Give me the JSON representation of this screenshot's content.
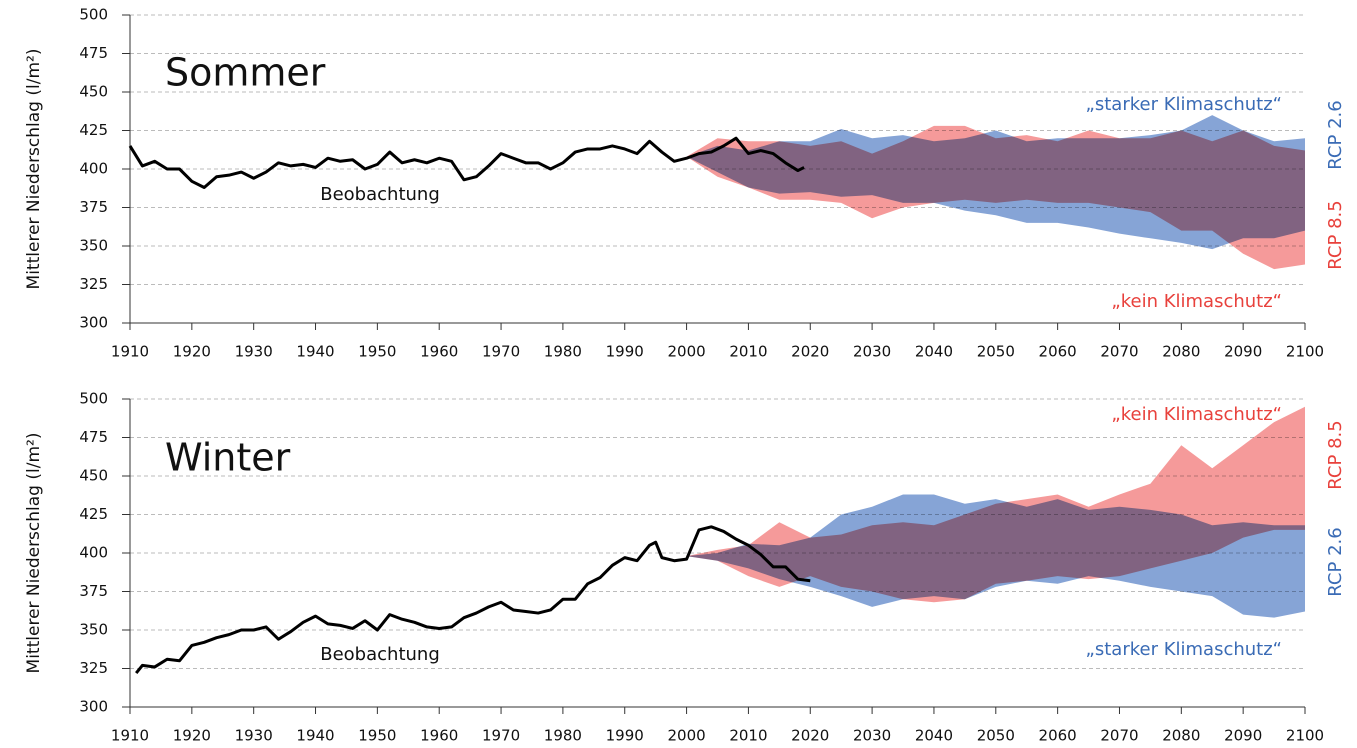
{
  "chart_data": [
    {
      "type": "line",
      "title": "Sommer",
      "ylabel": "Mittlerer Niederschlag (l/m²)",
      "xlim": [
        1910,
        2100
      ],
      "ylim": [
        300,
        500
      ],
      "xticks": [
        1910,
        1920,
        1930,
        1940,
        1950,
        1960,
        1970,
        1980,
        1990,
        2000,
        2010,
        2020,
        2030,
        2040,
        2050,
        2060,
        2070,
        2080,
        2090,
        2100
      ],
      "yticks": [
        300,
        325,
        350,
        375,
        400,
        425,
        450,
        475,
        500
      ],
      "grid": true,
      "series": [
        {
          "name": "RCP 2.6",
          "kind": "band",
          "color": "#86a4d6",
          "text_color": "#3a6bb5",
          "x": [
            2000,
            2005,
            2010,
            2015,
            2020,
            2025,
            2030,
            2035,
            2040,
            2045,
            2050,
            2055,
            2060,
            2065,
            2070,
            2075,
            2080,
            2085,
            2090,
            2095,
            2100
          ],
          "upper": [
            408,
            415,
            412,
            418,
            418,
            426,
            420,
            422,
            418,
            420,
            425,
            418,
            420,
            420,
            420,
            422,
            425,
            435,
            425,
            418,
            420
          ],
          "lower": [
            408,
            398,
            388,
            384,
            385,
            382,
            383,
            378,
            378,
            373,
            370,
            365,
            365,
            362,
            358,
            355,
            352,
            348,
            355,
            355,
            360
          ]
        },
        {
          "name": "RCP 8.5",
          "kind": "band",
          "color": "#f59a9a",
          "text_color": "#e8413c",
          "x": [
            2000,
            2005,
            2010,
            2015,
            2020,
            2025,
            2030,
            2035,
            2040,
            2045,
            2050,
            2055,
            2060,
            2065,
            2070,
            2075,
            2080,
            2085,
            2090,
            2095,
            2100
          ],
          "upper": [
            408,
            420,
            418,
            418,
            415,
            418,
            410,
            418,
            428,
            428,
            420,
            422,
            418,
            425,
            420,
            420,
            425,
            418,
            425,
            415,
            412
          ],
          "lower": [
            408,
            395,
            388,
            380,
            380,
            378,
            368,
            375,
            378,
            380,
            378,
            380,
            378,
            378,
            375,
            372,
            360,
            360,
            345,
            335,
            338
          ]
        },
        {
          "name": "Beobachtung",
          "kind": "line",
          "color": "#000000",
          "x": [
            1910,
            1912,
            1914,
            1916,
            1918,
            1920,
            1922,
            1924,
            1926,
            1928,
            1930,
            1932,
            1934,
            1936,
            1938,
            1940,
            1942,
            1944,
            1946,
            1948,
            1950,
            1952,
            1954,
            1956,
            1958,
            1960,
            1962,
            1964,
            1966,
            1968,
            1970,
            1972,
            1974,
            1976,
            1978,
            1980,
            1982,
            1984,
            1986,
            1988,
            1990,
            1992,
            1994,
            1996,
            1998,
            2000,
            2002,
            2004,
            2006,
            2008,
            2010,
            2012,
            2014,
            2016,
            2018,
            2019
          ],
          "values": [
            415,
            402,
            405,
            400,
            400,
            392,
            388,
            395,
            396,
            398,
            394,
            398,
            404,
            402,
            403,
            401,
            407,
            405,
            406,
            400,
            403,
            411,
            404,
            406,
            404,
            407,
            405,
            393,
            395,
            402,
            410,
            407,
            404,
            404,
            400,
            404,
            411,
            413,
            413,
            415,
            413,
            410,
            418,
            411,
            405,
            407,
            410,
            411,
            415,
            420,
            410,
            412,
            410,
            404,
            399,
            401
          ]
        }
      ],
      "annotations": [
        {
          "text": "„starker Klimaschutz“",
          "color": "#3a6bb5"
        },
        {
          "text": "„kein Klimaschutz“",
          "color": "#e8413c"
        }
      ]
    },
    {
      "type": "line",
      "title": "Winter",
      "ylabel": "Mittlerer Niederschlag (l/m²)",
      "xlim": [
        1910,
        2100
      ],
      "ylim": [
        300,
        500
      ],
      "xticks": [
        1910,
        1920,
        1930,
        1940,
        1950,
        1960,
        1970,
        1980,
        1990,
        2000,
        2010,
        2020,
        2030,
        2040,
        2050,
        2060,
        2070,
        2080,
        2090,
        2100
      ],
      "yticks": [
        300,
        325,
        350,
        375,
        400,
        425,
        450,
        475,
        500
      ],
      "grid": true,
      "series": [
        {
          "name": "RCP 2.6",
          "kind": "band",
          "color": "#86a4d6",
          "text_color": "#3a6bb5",
          "x": [
            2000,
            2005,
            2010,
            2015,
            2020,
            2025,
            2030,
            2035,
            2040,
            2045,
            2050,
            2055,
            2060,
            2065,
            2070,
            2075,
            2080,
            2085,
            2090,
            2095,
            2100
          ],
          "upper": [
            398,
            400,
            406,
            405,
            410,
            425,
            430,
            438,
            438,
            432,
            435,
            430,
            435,
            428,
            430,
            428,
            425,
            418,
            420,
            418,
            418
          ],
          "lower": [
            398,
            395,
            390,
            383,
            378,
            372,
            365,
            370,
            372,
            370,
            378,
            382,
            380,
            385,
            382,
            378,
            375,
            372,
            360,
            358,
            362
          ]
        },
        {
          "name": "RCP 8.5",
          "kind": "band",
          "color": "#f59a9a",
          "text_color": "#e8413c",
          "x": [
            2000,
            2005,
            2010,
            2015,
            2020,
            2025,
            2030,
            2035,
            2040,
            2045,
            2050,
            2055,
            2060,
            2065,
            2070,
            2075,
            2080,
            2085,
            2090,
            2095,
            2100
          ],
          "upper": [
            398,
            402,
            405,
            420,
            410,
            412,
            418,
            420,
            418,
            425,
            432,
            435,
            438,
            430,
            438,
            445,
            470,
            455,
            470,
            485,
            495
          ],
          "lower": [
            398,
            395,
            385,
            378,
            385,
            378,
            375,
            370,
            368,
            370,
            380,
            382,
            385,
            383,
            385,
            390,
            395,
            400,
            410,
            415,
            415
          ]
        },
        {
          "name": "Beobachtung",
          "kind": "line",
          "color": "#000000",
          "x": [
            1911,
            1912,
            1914,
            1916,
            1918,
            1920,
            1922,
            1924,
            1926,
            1928,
            1930,
            1932,
            1934,
            1936,
            1938,
            1940,
            1942,
            1944,
            1946,
            1948,
            1950,
            1952,
            1954,
            1956,
            1958,
            1960,
            1962,
            1964,
            1966,
            1968,
            1970,
            1972,
            1974,
            1976,
            1978,
            1980,
            1982,
            1984,
            1986,
            1988,
            1990,
            1992,
            1994,
            1995,
            1996,
            1998,
            2000,
            2002,
            2004,
            2006,
            2008,
            2010,
            2012,
            2014,
            2016,
            2018,
            2020
          ],
          "values": [
            322,
            327,
            326,
            331,
            330,
            340,
            342,
            345,
            347,
            350,
            350,
            352,
            344,
            349,
            355,
            359,
            354,
            353,
            351,
            356,
            350,
            360,
            357,
            355,
            352,
            351,
            352,
            358,
            361,
            365,
            368,
            363,
            362,
            361,
            363,
            370,
            370,
            380,
            384,
            392,
            397,
            395,
            405,
            407,
            397,
            395,
            396,
            415,
            417,
            414,
            409,
            405,
            399,
            391,
            391,
            383,
            382
          ]
        }
      ],
      "annotations": [
        {
          "text": "„kein Klimaschutz“",
          "color": "#e8413c"
        },
        {
          "text": "„starker Klimaschutz“",
          "color": "#3a6bb5"
        }
      ]
    }
  ]
}
